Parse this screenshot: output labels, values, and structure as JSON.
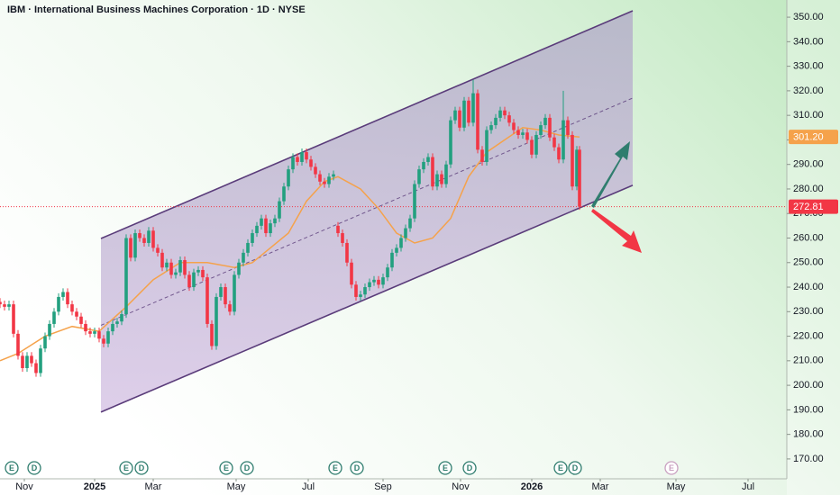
{
  "chart_data": {
    "type": "candlestick",
    "title": "IBM · International Business Machines Corporation · 1D · NYSE",
    "colors": {
      "up": "#22a07f",
      "down": "#f23645",
      "ma": "#f5a24b",
      "channel": "#5a3c7a",
      "last": "#f23645"
    },
    "xlim": [
      0,
      349.2
    ],
    "ylim": [
      161.9,
      357
    ],
    "xticks": [
      {
        "value": 10.8,
        "label": "Nov"
      },
      {
        "value": 42,
        "label": "2025"
      },
      {
        "value": 68,
        "label": "Mar"
      },
      {
        "value": 104.8,
        "label": "May"
      },
      {
        "value": 136.8,
        "label": "Jul"
      },
      {
        "value": 170,
        "label": "Sep"
      },
      {
        "value": 204.4,
        "label": "Nov"
      },
      {
        "value": 236,
        "label": "2026"
      },
      {
        "value": 266.4,
        "label": "Mar"
      },
      {
        "value": 300,
        "label": "May"
      },
      {
        "value": 332,
        "label": "Jul"
      }
    ],
    "yticks": [
      {
        "value": 170,
        "label": "170.00"
      },
      {
        "value": 180,
        "label": "180.00"
      },
      {
        "value": 190,
        "label": "190.00"
      },
      {
        "value": 200,
        "label": "200.00"
      },
      {
        "value": 210,
        "label": "210.00"
      },
      {
        "value": 220,
        "label": "220.00"
      },
      {
        "value": 230,
        "label": "230.00"
      },
      {
        "value": 240,
        "label": "240.00"
      },
      {
        "value": 250,
        "label": "250.00"
      },
      {
        "value": 260,
        "label": "260.00"
      },
      {
        "value": 270,
        "label": "270.00"
      },
      {
        "value": 280,
        "label": "280.00"
      },
      {
        "value": 290,
        "label": "290.00"
      },
      {
        "value": 300,
        "label": "300.00"
      },
      {
        "value": 310,
        "label": "310.00"
      },
      {
        "value": 320,
        "label": "320.00"
      },
      {
        "value": 330,
        "label": "330.00"
      },
      {
        "value": 340,
        "label": "340.00"
      },
      {
        "value": 350,
        "label": "350.00"
      }
    ],
    "candles": [
      [
        0,
        234,
        235.5,
        231.5,
        233
      ],
      [
        2,
        233,
        234.5,
        230.5,
        232
      ],
      [
        4,
        232,
        234.5,
        230.5,
        233
      ],
      [
        6,
        233,
        234.5,
        219.5,
        221
      ],
      [
        8,
        221,
        222.5,
        210.5,
        212
      ],
      [
        10,
        212,
        213.5,
        205.5,
        207
      ],
      [
        12,
        207,
        213.5,
        205.5,
        212
      ],
      [
        14,
        212,
        213.5,
        207.5,
        209
      ],
      [
        16,
        209,
        210.5,
        203.5,
        205
      ],
      [
        18,
        205,
        216.5,
        203.5,
        215
      ],
      [
        20,
        215,
        221.5,
        213.5,
        220
      ],
      [
        22,
        220,
        226.5,
        218.5,
        225
      ],
      [
        24,
        225,
        231.5,
        223.5,
        230
      ],
      [
        26,
        230,
        237.5,
        228.5,
        236
      ],
      [
        28,
        236,
        239.5,
        234.5,
        238
      ],
      [
        30,
        238,
        239.5,
        231.5,
        233
      ],
      [
        32,
        233,
        234.5,
        228.5,
        230
      ],
      [
        34,
        230,
        231.5,
        226.5,
        228
      ],
      [
        36,
        228,
        229.5,
        223.5,
        225
      ],
      [
        38,
        225,
        226.5,
        220.5,
        222
      ],
      [
        40,
        222,
        223.5,
        219.5,
        221
      ],
      [
        42,
        221,
        223.5,
        219.5,
        222
      ],
      [
        44,
        222,
        223.5,
        217.5,
        219
      ],
      [
        46,
        219,
        220.5,
        215.5,
        217
      ],
      [
        48,
        217,
        223.5,
        215.5,
        222
      ],
      [
        50,
        222,
        226.5,
        220.5,
        225
      ],
      [
        52,
        225,
        227.5,
        223.5,
        226
      ],
      [
        54,
        226,
        230.5,
        224.5,
        229
      ],
      [
        56,
        229,
        261.5,
        227.5,
        260
      ],
      [
        58,
        260,
        261.5,
        250.5,
        252
      ],
      [
        60,
        252,
        263.5,
        250.5,
        262
      ],
      [
        62,
        262,
        263.5,
        258.5,
        260
      ],
      [
        64,
        260,
        261.5,
        256.5,
        258
      ],
      [
        66,
        258,
        264.5,
        256.5,
        263
      ],
      [
        68,
        263,
        264.5,
        254.5,
        256
      ],
      [
        70,
        256,
        257.5,
        252.5,
        254
      ],
      [
        72,
        254,
        255.5,
        246.5,
        248
      ],
      [
        74,
        248,
        251.5,
        246.5,
        250
      ],
      [
        76,
        250,
        251.5,
        243.5,
        245
      ],
      [
        78,
        245,
        247.5,
        243.5,
        246
      ],
      [
        80,
        246,
        252.5,
        244.5,
        251
      ],
      [
        82,
        251,
        252.5,
        243.5,
        245
      ],
      [
        84,
        245,
        246.5,
        238.5,
        240
      ],
      [
        86,
        240,
        247.5,
        238.5,
        246
      ],
      [
        88,
        246,
        248.5,
        244.5,
        247
      ],
      [
        90,
        247,
        248.5,
        242.5,
        244
      ],
      [
        92,
        244,
        245.5,
        223.5,
        225
      ],
      [
        94,
        225,
        226.5,
        214.5,
        216
      ],
      [
        96,
        216,
        237.5,
        214.5,
        236
      ],
      [
        98,
        236,
        241.5,
        234.5,
        240
      ],
      [
        100,
        240,
        241.5,
        231.5,
        233
      ],
      [
        102,
        233,
        234.5,
        228.5,
        230
      ],
      [
        104,
        230,
        246.5,
        228.5,
        245
      ],
      [
        106,
        245,
        251.5,
        243.5,
        250
      ],
      [
        108,
        250,
        255.5,
        248.5,
        254
      ],
      [
        110,
        254,
        259.5,
        252.5,
        258
      ],
      [
        112,
        258,
        263.5,
        256.5,
        262
      ],
      [
        114,
        262,
        266.5,
        260.5,
        265
      ],
      [
        116,
        265,
        269.5,
        263.5,
        268
      ],
      [
        118,
        268,
        269.5,
        260.5,
        262
      ],
      [
        120,
        262,
        267.5,
        260.5,
        266
      ],
      [
        122,
        266,
        269.5,
        264.5,
        268
      ],
      [
        124,
        268,
        276.5,
        266.5,
        275
      ],
      [
        126,
        275,
        282.5,
        273.5,
        281
      ],
      [
        128,
        281,
        289.5,
        279.5,
        288
      ],
      [
        130,
        288,
        294.5,
        286.5,
        293
      ],
      [
        132,
        293,
        294.5,
        289.5,
        291
      ],
      [
        134,
        291,
        296.5,
        289.5,
        295
      ],
      [
        136,
        295,
        296.5,
        290.5,
        292
      ],
      [
        138,
        292,
        293.5,
        287.5,
        289
      ],
      [
        140,
        289,
        290.5,
        284.5,
        286
      ],
      [
        142,
        286,
        287.5,
        281.5,
        283
      ],
      [
        144,
        283,
        284.5,
        280.5,
        282
      ],
      [
        146,
        282,
        286.5,
        280.5,
        285
      ],
      [
        148,
        285,
        287.5,
        283.5,
        286
      ],
      [
        150,
        265,
        266.5,
        260.5,
        262
      ],
      [
        152,
        262,
        263.5,
        256.5,
        258
      ],
      [
        154,
        258,
        259.5,
        248.5,
        250
      ],
      [
        156,
        250,
        251.5,
        239.5,
        241
      ],
      [
        158,
        241,
        242.5,
        234.5,
        236
      ],
      [
        160,
        236,
        238.5,
        234.5,
        237
      ],
      [
        162,
        237,
        241.5,
        235.5,
        240
      ],
      [
        164,
        240,
        243.5,
        238.5,
        242
      ],
      [
        166,
        242,
        244.5,
        240.5,
        243
      ],
      [
        168,
        243,
        244.5,
        239.5,
        241
      ],
      [
        170,
        241,
        245.5,
        239.5,
        244
      ],
      [
        172,
        244,
        249.5,
        242.5,
        248
      ],
      [
        174,
        248,
        255.5,
        246.5,
        254
      ],
      [
        176,
        254,
        257.5,
        252.5,
        256
      ],
      [
        178,
        256,
        261.5,
        254.5,
        260
      ],
      [
        180,
        260,
        265.5,
        258.5,
        264
      ],
      [
        182,
        264,
        269.5,
        262.5,
        268
      ],
      [
        184,
        268,
        283.5,
        266.5,
        282
      ],
      [
        186,
        282,
        289.5,
        280.5,
        288
      ],
      [
        188,
        288,
        292.5,
        286.5,
        291
      ],
      [
        190,
        291,
        294.5,
        289.5,
        293
      ],
      [
        192,
        293,
        294.5,
        279.5,
        281
      ],
      [
        194,
        281,
        287.5,
        279.5,
        286
      ],
      [
        196,
        286,
        287.5,
        280.5,
        282
      ],
      [
        198,
        282,
        291.5,
        280.5,
        290
      ],
      [
        200,
        290,
        309.5,
        288.5,
        308
      ],
      [
        202,
        308,
        313.5,
        306.5,
        312
      ],
      [
        204,
        312,
        313.5,
        303.5,
        305
      ],
      [
        206,
        305,
        317.5,
        303.5,
        316
      ],
      [
        208,
        316,
        317.5,
        305.5,
        307
      ],
      [
        210,
        307,
        324.5,
        305.5,
        319
      ],
      [
        212,
        319,
        320.5,
        294.5,
        296
      ],
      [
        214,
        296,
        297.5,
        289.5,
        291
      ],
      [
        216,
        291,
        305.5,
        289.5,
        304
      ],
      [
        218,
        304,
        307.5,
        302.5,
        306
      ],
      [
        220,
        306,
        310.5,
        304.5,
        309
      ],
      [
        222,
        309,
        313.5,
        307.5,
        312
      ],
      [
        224,
        312,
        313.5,
        308.5,
        310
      ],
      [
        226,
        310,
        311.5,
        305.5,
        307
      ],
      [
        228,
        307,
        308.5,
        302.5,
        304
      ],
      [
        230,
        304,
        305.5,
        300.5,
        302
      ],
      [
        232,
        302,
        304.5,
        300.5,
        303
      ],
      [
        234,
        303,
        304.5,
        298.5,
        300
      ],
      [
        236,
        300,
        301.5,
        292.5,
        294
      ],
      [
        238,
        294,
        303.5,
        292.5,
        302
      ],
      [
        240,
        302,
        307.5,
        300.5,
        306
      ],
      [
        242,
        306,
        310.5,
        304.5,
        309
      ],
      [
        244,
        309,
        310.5,
        299.5,
        301
      ],
      [
        246,
        301,
        302.5,
        295.5,
        297
      ],
      [
        248,
        297,
        298.5,
        290.5,
        292
      ],
      [
        250,
        292,
        320,
        290.5,
        308
      ],
      [
        252,
        308,
        309.5,
        300.5,
        302
      ],
      [
        254,
        302,
        303.5,
        279.5,
        281
      ],
      [
        256,
        281,
        297.5,
        279.5,
        296
      ],
      [
        257.2,
        296,
        297.5,
        271.5,
        272.81
      ]
    ],
    "last_close_label": "272.81",
    "moving_average": {
      "x": [
        0,
        8,
        20,
        32,
        44,
        56,
        68,
        80,
        92,
        104,
        112,
        120,
        128,
        136,
        144,
        150,
        160,
        168,
        176,
        184,
        192,
        200,
        208,
        216,
        224,
        232,
        240,
        248,
        257.2
      ],
      "values": [
        210,
        213,
        220,
        224,
        222,
        232,
        243,
        250,
        250,
        248,
        250,
        256,
        262,
        275,
        283,
        285,
        280,
        272,
        262,
        258,
        260,
        268,
        285,
        295,
        300,
        305,
        304,
        302,
        301.2
      ],
      "last_label": "301.20"
    },
    "channel": {
      "upper": [
        [
          44.8,
          259.8
        ],
        [
          280.8,
          352.6
        ]
      ],
      "lower": [
        [
          44.8,
          189.1
        ],
        [
          280.8,
          281.5
        ]
      ]
    },
    "events": [
      {
        "x": 5.2,
        "label": "E"
      },
      {
        "x": 15.2,
        "label": "D"
      },
      {
        "x": 56,
        "label": "E"
      },
      {
        "x": 62.8,
        "label": "D"
      },
      {
        "x": 100.4,
        "label": "E"
      },
      {
        "x": 109.6,
        "label": "D"
      },
      {
        "x": 148.8,
        "label": "E"
      },
      {
        "x": 158.4,
        "label": "D"
      },
      {
        "x": 197.6,
        "label": "E"
      },
      {
        "x": 208.4,
        "label": "D"
      },
      {
        "x": 248.8,
        "label": "E"
      },
      {
        "x": 255.2,
        "label": "D"
      },
      {
        "x": 298,
        "label": "E"
      }
    ]
  }
}
